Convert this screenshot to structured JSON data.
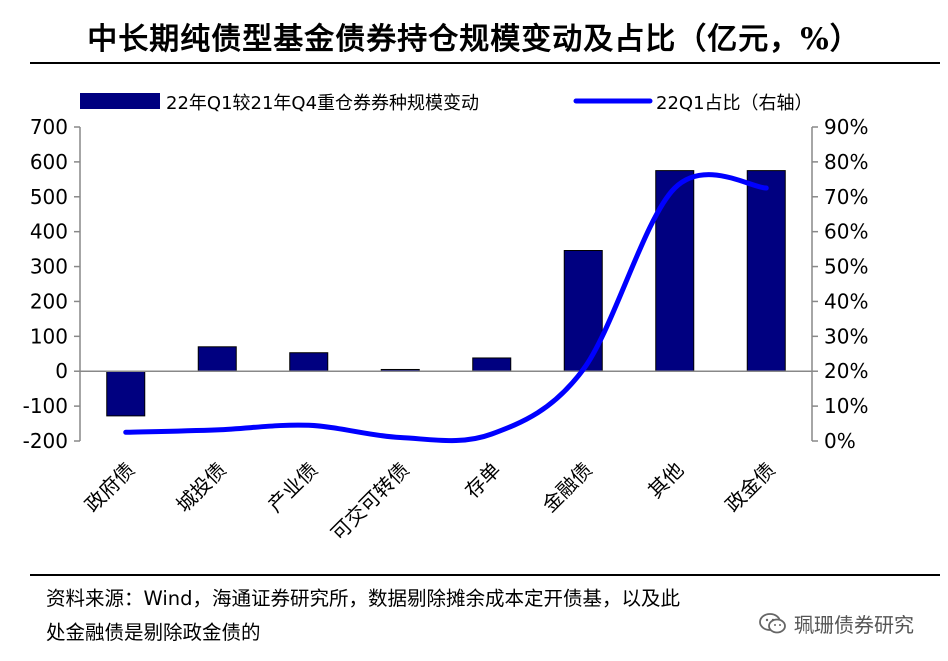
{
  "title": "中长期纯债型基金债券持仓规模变动及占比（亿元，%）",
  "footer": {
    "source_line1": "资料来源：Wind，海通证券研究所，数据剔除摊余成本定开债基，以及此",
    "source_line2": "处金融债是剔除政金债的",
    "watermark": "珮珊债券研究"
  },
  "colors": {
    "bar": "#000080",
    "line": "#0000ff"
  },
  "chart_data": {
    "type": "bar+line",
    "categories": [
      "政府债",
      "城投债",
      "产业债",
      "可交可转债",
      "存单",
      "金融债",
      "其他",
      "政金债"
    ],
    "series": [
      {
        "name": "22年Q1较21年Q4重仓券券种规模变动",
        "type": "bar",
        "axis": "left",
        "values": [
          -128,
          70,
          53,
          5,
          38,
          346,
          575,
          575
        ]
      },
      {
        "name": "22Q1占比（右轴）",
        "type": "line",
        "axis": "right",
        "unit": "%",
        "values": [
          2.5,
          3.2,
          4.5,
          1.0,
          2.0,
          20.5,
          72.5,
          72.5
        ]
      }
    ],
    "y_left": {
      "min": -200,
      "max": 700,
      "step": 100,
      "ticks": [
        "700",
        "600",
        "500",
        "400",
        "300",
        "200",
        "100",
        "0",
        "-100",
        "-200"
      ]
    },
    "y_right": {
      "min": 0,
      "max": 90,
      "step": 10,
      "ticks": [
        "90%",
        "80%",
        "70%",
        "60%",
        "50%",
        "40%",
        "30%",
        "20%",
        "10%",
        "0%"
      ]
    },
    "legend_position": "top",
    "grid": false
  }
}
